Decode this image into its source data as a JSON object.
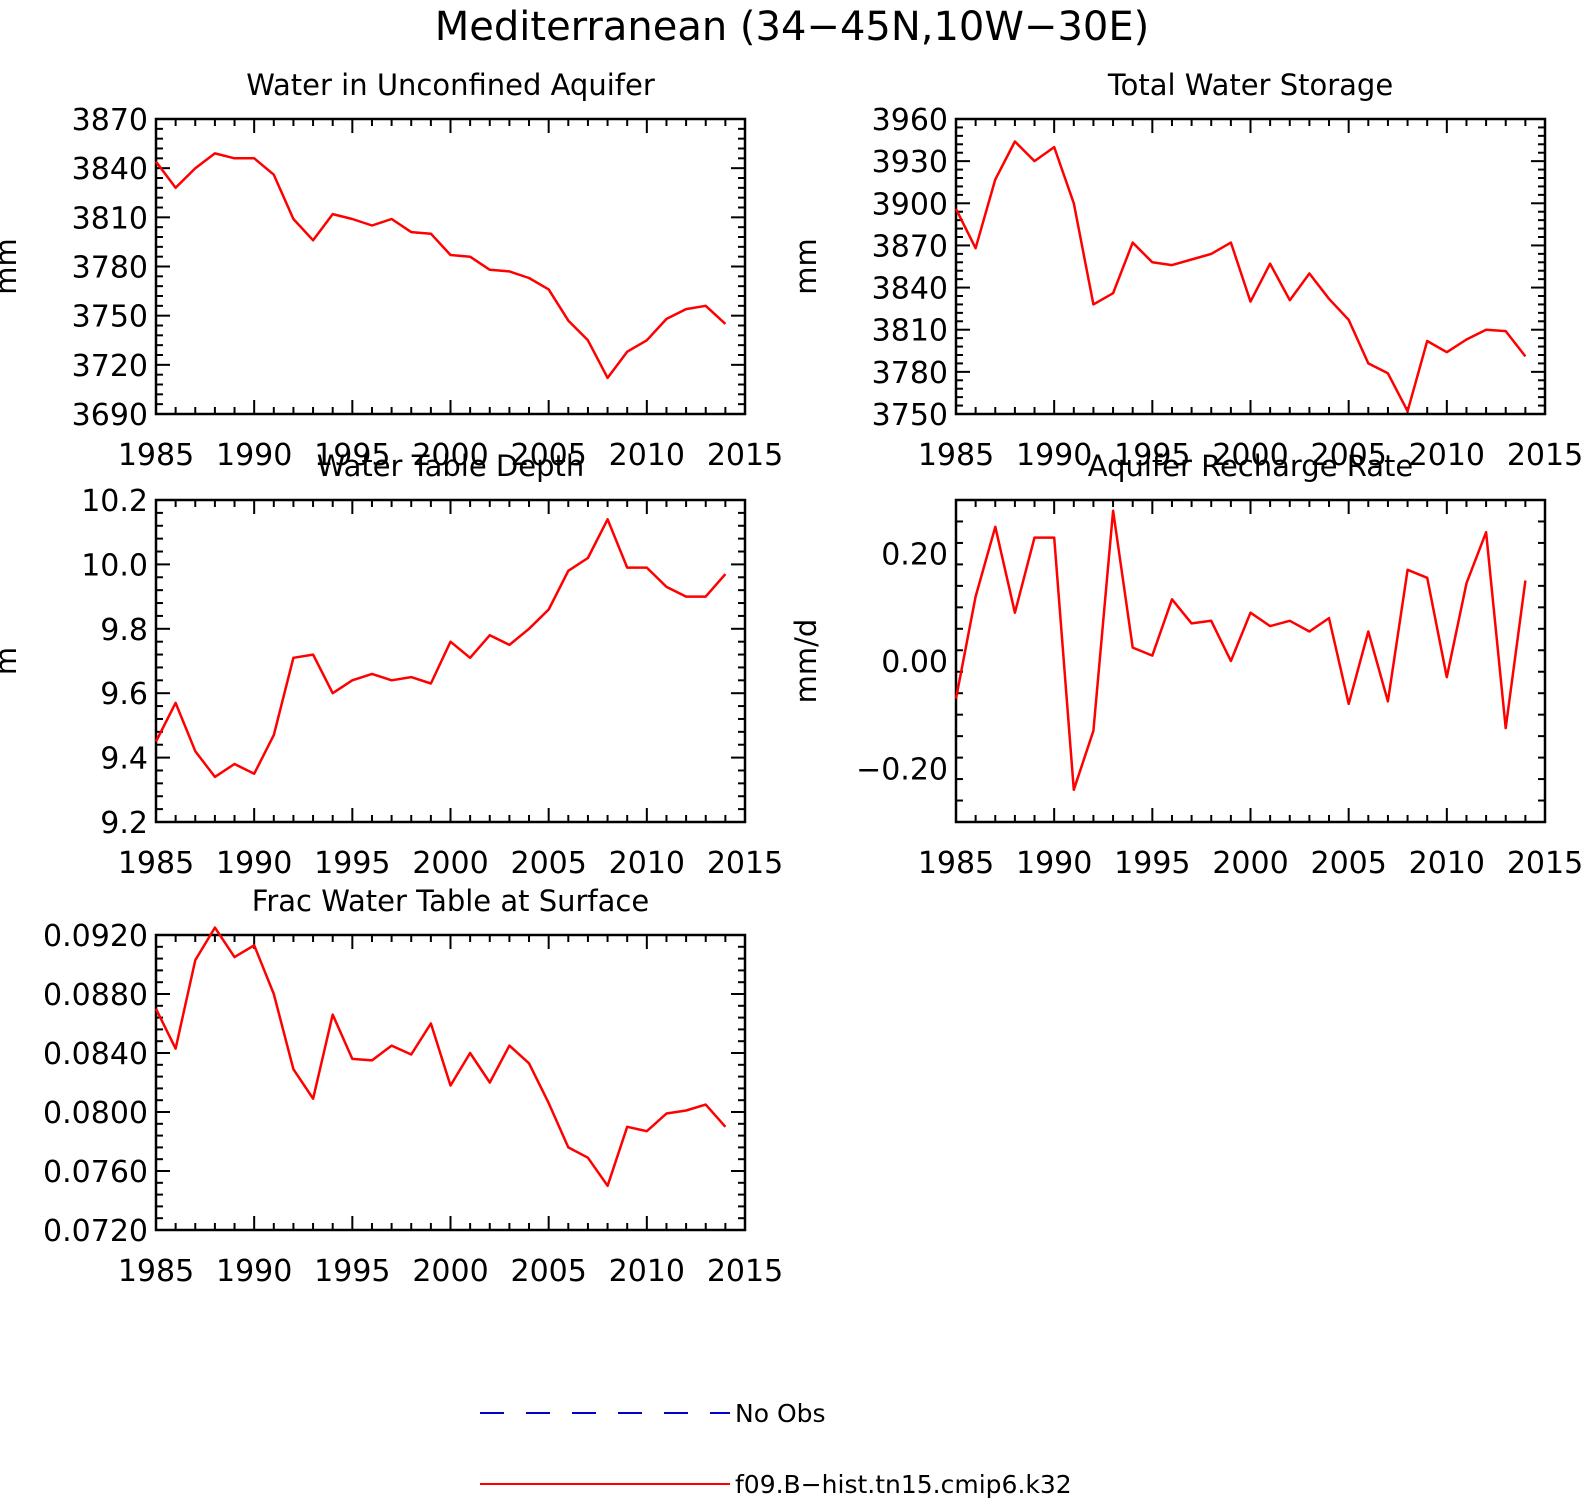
{
  "figure": {
    "title": "Mediterranean (34−45N,10W−30E)"
  },
  "legend": {
    "placement": "bottom-center",
    "items": [
      {
        "label": "No Obs",
        "color": "#0000cc",
        "style": "dashed"
      },
      {
        "label": "f09.B−hist.tn15.cmip6.k32",
        "color": "#ff0000",
        "style": "solid"
      }
    ]
  },
  "chart_data": [
    {
      "type": "line",
      "title": "Water in Unconfined Aquifer",
      "xlabel": "",
      "ylabel": "mm",
      "xlim": [
        1985,
        2015
      ],
      "ylim": [
        3690,
        3870
      ],
      "xticks": [
        1985,
        1990,
        1995,
        2000,
        2005,
        2010,
        2015
      ],
      "yticks": [
        3690,
        3720,
        3750,
        3780,
        3810,
        3840,
        3870
      ],
      "ytick_labels": [
        "3690",
        "3720",
        "3750",
        "3780",
        "3810",
        "3840",
        "3870"
      ],
      "grid": false,
      "series": [
        {
          "name": "f09.B−hist.tn15.cmip6.k32",
          "color": "#ff0000",
          "x": [
            1985,
            1986,
            1987,
            1988,
            1989,
            1990,
            1991,
            1992,
            1993,
            1994,
            1995,
            1996,
            1997,
            1998,
            1999,
            2000,
            2001,
            2002,
            2003,
            2004,
            2005,
            2006,
            2007,
            2008,
            2009,
            2010,
            2011,
            2012,
            2013,
            2014
          ],
          "y": [
            3844,
            3828,
            3840,
            3849,
            3846,
            3846,
            3836,
            3809,
            3796,
            3812,
            3809,
            3805,
            3809,
            3801,
            3800,
            3787,
            3786,
            3778,
            3777,
            3773,
            3766,
            3747,
            3735,
            3712,
            3728,
            3735,
            3748,
            3754,
            3756,
            3745
          ]
        }
      ]
    },
    {
      "type": "line",
      "title": "Total Water Storage",
      "xlabel": "",
      "ylabel": "mm",
      "xlim": [
        1985,
        2015
      ],
      "ylim": [
        3750,
        3960
      ],
      "xticks": [
        1985,
        1990,
        1995,
        2000,
        2005,
        2010,
        2015
      ],
      "yticks": [
        3750,
        3780,
        3810,
        3840,
        3870,
        3900,
        3930,
        3960
      ],
      "ytick_labels": [
        "3750",
        "3780",
        "3810",
        "3840",
        "3870",
        "3900",
        "3930",
        "3960"
      ],
      "grid": false,
      "series": [
        {
          "name": "f09.B−hist.tn15.cmip6.k32",
          "color": "#ff0000",
          "x": [
            1985,
            1986,
            1987,
            1988,
            1989,
            1990,
            1991,
            1992,
            1993,
            1994,
            1995,
            1996,
            1997,
            1998,
            1999,
            2000,
            2001,
            2002,
            2003,
            2004,
            2005,
            2006,
            2007,
            2008,
            2009,
            2010,
            2011,
            2012,
            2013,
            2014
          ],
          "y": [
            3896,
            3868,
            3917,
            3944,
            3930,
            3940,
            3900,
            3828,
            3836,
            3872,
            3858,
            3856,
            3860,
            3864,
            3872,
            3830,
            3857,
            3831,
            3850,
            3832,
            3817,
            3786,
            3779,
            3752,
            3802,
            3794,
            3803,
            3810,
            3809,
            3791
          ]
        }
      ]
    },
    {
      "type": "line",
      "title": "Water Table Depth",
      "xlabel": "",
      "ylabel": "m",
      "xlim": [
        1985,
        2015
      ],
      "ylim": [
        9.2,
        10.2
      ],
      "xticks": [
        1985,
        1990,
        1995,
        2000,
        2005,
        2010,
        2015
      ],
      "yticks": [
        9.2,
        9.4,
        9.6,
        9.8,
        10.0,
        10.2
      ],
      "ytick_labels": [
        "9.2",
        "9.4",
        "9.6",
        "9.8",
        "10.0",
        "10.2"
      ],
      "grid": false,
      "series": [
        {
          "name": "f09.B−hist.tn15.cmip6.k32",
          "color": "#ff0000",
          "x": [
            1985,
            1986,
            1987,
            1988,
            1989,
            1990,
            1991,
            1992,
            1993,
            1994,
            1995,
            1996,
            1997,
            1998,
            1999,
            2000,
            2001,
            2002,
            2003,
            2004,
            2005,
            2006,
            2007,
            2008,
            2009,
            2010,
            2011,
            2012,
            2013,
            2014
          ],
          "y": [
            9.45,
            9.57,
            9.42,
            9.34,
            9.38,
            9.35,
            9.47,
            9.71,
            9.72,
            9.6,
            9.64,
            9.66,
            9.64,
            9.65,
            9.63,
            9.76,
            9.71,
            9.78,
            9.75,
            9.8,
            9.86,
            9.98,
            10.02,
            10.14,
            9.99,
            9.99,
            9.93,
            9.9,
            9.9,
            9.97
          ]
        }
      ]
    },
    {
      "type": "line",
      "title": "Aquifer Recharge Rate",
      "xlabel": "",
      "ylabel": "mm/d",
      "xlim": [
        1985,
        2015
      ],
      "ylim": [
        -0.3,
        0.3
      ],
      "xticks": [
        1985,
        1990,
        1995,
        2000,
        2005,
        2010,
        2015
      ],
      "yticks": [
        -0.2,
        0.0,
        0.2
      ],
      "ytick_labels": [
        "−0.20",
        "0.00",
        "0.20"
      ],
      "grid": false,
      "series": [
        {
          "name": "f09.B−hist.tn15.cmip6.k32",
          "color": "#ff0000",
          "x": [
            1985,
            1986,
            1987,
            1988,
            1989,
            1990,
            1991,
            1992,
            1993,
            1994,
            1995,
            1996,
            1997,
            1998,
            1999,
            2000,
            2001,
            2002,
            2003,
            2004,
            2005,
            2006,
            2007,
            2008,
            2009,
            2010,
            2011,
            2012,
            2013,
            2014
          ],
          "y": [
            -0.07,
            0.12,
            0.25,
            0.09,
            0.23,
            0.23,
            -0.24,
            -0.13,
            0.28,
            0.025,
            0.01,
            0.115,
            0.07,
            0.075,
            0.0,
            0.09,
            0.065,
            0.075,
            0.055,
            0.08,
            -0.08,
            0.055,
            -0.075,
            0.17,
            0.155,
            -0.03,
            0.145,
            0.24,
            -0.125,
            0.15
          ]
        }
      ]
    },
    {
      "type": "line",
      "title": "Frac Water Table at Surface",
      "xlabel": "",
      "ylabel": "",
      "xlim": [
        1985,
        2015
      ],
      "ylim": [
        0.072,
        0.092
      ],
      "xticks": [
        1985,
        1990,
        1995,
        2000,
        2005,
        2010,
        2015
      ],
      "yticks": [
        0.072,
        0.076,
        0.08,
        0.084,
        0.088,
        0.092
      ],
      "ytick_labels": [
        "0.0720",
        "0.0760",
        "0.0800",
        "0.0840",
        "0.0880",
        "0.0920"
      ],
      "grid": false,
      "series": [
        {
          "name": "f09.B−hist.tn15.cmip6.k32",
          "color": "#ff0000",
          "x": [
            1985,
            1986,
            1987,
            1988,
            1989,
            1990,
            1991,
            1992,
            1993,
            1994,
            1995,
            1996,
            1997,
            1998,
            1999,
            2000,
            2001,
            2002,
            2003,
            2004,
            2005,
            2006,
            2007,
            2008,
            2009,
            2010,
            2011,
            2012,
            2013,
            2014
          ],
          "y": [
            0.087,
            0.0843,
            0.0903,
            0.0925,
            0.0905,
            0.0913,
            0.088,
            0.0829,
            0.0809,
            0.0866,
            0.0836,
            0.0835,
            0.0845,
            0.0839,
            0.086,
            0.0818,
            0.084,
            0.082,
            0.0845,
            0.0833,
            0.0806,
            0.0776,
            0.0769,
            0.075,
            0.079,
            0.0787,
            0.0799,
            0.0801,
            0.0805,
            0.079
          ]
        }
      ]
    }
  ]
}
